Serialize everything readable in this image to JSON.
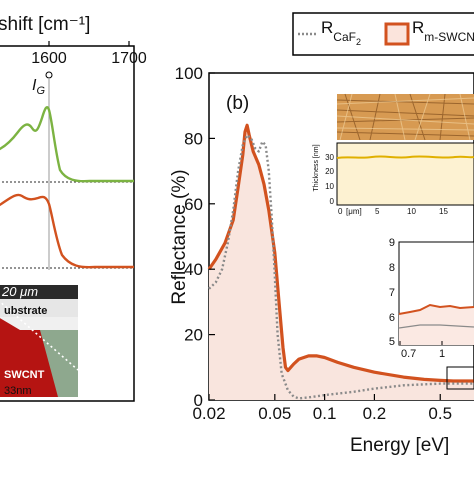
{
  "left_panel": {
    "axis_title": "shift [cm⁻¹]",
    "ticks": [
      "1600",
      "1700"
    ],
    "peak_label": "I",
    "peak_label_sub": "G",
    "image_labels": {
      "scale": "20 μm",
      "substrate": "ubstrate",
      "swcnt": "SWCNT",
      "thickness": "33nm"
    }
  },
  "legend": {
    "items": [
      {
        "name_main": "R",
        "name_sub": "CaF",
        "name_sub2": "2",
        "style": "dotted-gray"
      },
      {
        "name_main": "R",
        "name_sub": "m-SWCNT",
        "style": "orange-box"
      }
    ]
  },
  "main_chart": {
    "panel_label": "(b)",
    "inset_top": {
      "ylabel": "Thickness [nm]",
      "yticks": [
        "30",
        "20",
        "10",
        "0"
      ],
      "xticks": [
        "0",
        "5",
        "10",
        "15"
      ],
      "xunit": "[μm]"
    },
    "inset_zoom": {
      "yticks": [
        "9",
        "8",
        "7",
        "6",
        "5"
      ],
      "xticks": [
        "0.7",
        "1"
      ]
    }
  },
  "chart_data": {
    "type": "line",
    "xlabel": "Energy [eV]",
    "ylabel": "Reflectance (%)",
    "xscale": "log",
    "xlim": [
      0.02,
      0.8
    ],
    "ylim": [
      0,
      100
    ],
    "xticks": [
      0.02,
      0.05,
      0.1,
      0.2,
      0.5
    ],
    "xtick_labels": [
      "0.02",
      "0.05",
      "0.1",
      "0.2",
      "0.5"
    ],
    "yticks": [
      0,
      20,
      40,
      60,
      80,
      100
    ],
    "ytick_labels": [
      "0",
      "20",
      "40",
      "60",
      "80",
      "100"
    ],
    "series": [
      {
        "name": "R m-SWCNT",
        "color": "#d2521f",
        "fill": "#f9e5de",
        "points": [
          [
            0.02,
            40
          ],
          [
            0.022,
            43
          ],
          [
            0.025,
            48
          ],
          [
            0.028,
            55
          ],
          [
            0.03,
            65
          ],
          [
            0.032,
            75
          ],
          [
            0.033,
            82
          ],
          [
            0.034,
            84
          ],
          [
            0.035,
            81
          ],
          [
            0.037,
            76
          ],
          [
            0.04,
            72
          ],
          [
            0.043,
            66
          ],
          [
            0.046,
            58
          ],
          [
            0.05,
            45
          ],
          [
            0.053,
            30
          ],
          [
            0.056,
            16
          ],
          [
            0.058,
            10
          ],
          [
            0.06,
            9
          ],
          [
            0.065,
            11
          ],
          [
            0.07,
            12.5
          ],
          [
            0.08,
            13.5
          ],
          [
            0.09,
            13.5
          ],
          [
            0.1,
            13
          ],
          [
            0.12,
            11.5
          ],
          [
            0.15,
            10
          ],
          [
            0.2,
            8.5
          ],
          [
            0.3,
            7
          ],
          [
            0.4,
            6.3
          ],
          [
            0.5,
            6
          ],
          [
            0.6,
            5.8
          ],
          [
            0.7,
            5.8
          ],
          [
            0.8,
            5.8
          ]
        ]
      },
      {
        "name": "R CaF2",
        "color": "#8a8a8a",
        "points": [
          [
            0.02,
            34
          ],
          [
            0.022,
            36
          ],
          [
            0.024,
            40
          ],
          [
            0.026,
            48
          ],
          [
            0.028,
            58
          ],
          [
            0.03,
            70
          ],
          [
            0.032,
            78
          ],
          [
            0.034,
            81
          ],
          [
            0.036,
            80
          ],
          [
            0.038,
            77
          ],
          [
            0.04,
            76
          ],
          [
            0.042,
            79
          ],
          [
            0.044,
            78
          ],
          [
            0.046,
            70
          ],
          [
            0.048,
            55
          ],
          [
            0.05,
            38
          ],
          [
            0.052,
            20
          ],
          [
            0.055,
            8
          ],
          [
            0.06,
            3
          ],
          [
            0.065,
            1
          ],
          [
            0.07,
            0.5
          ],
          [
            0.08,
            0.8
          ],
          [
            0.1,
            1.5
          ],
          [
            0.15,
            2.5
          ],
          [
            0.2,
            3.5
          ],
          [
            0.3,
            4.5
          ],
          [
            0.5,
            5
          ],
          [
            0.8,
            5
          ]
        ]
      }
    ]
  }
}
